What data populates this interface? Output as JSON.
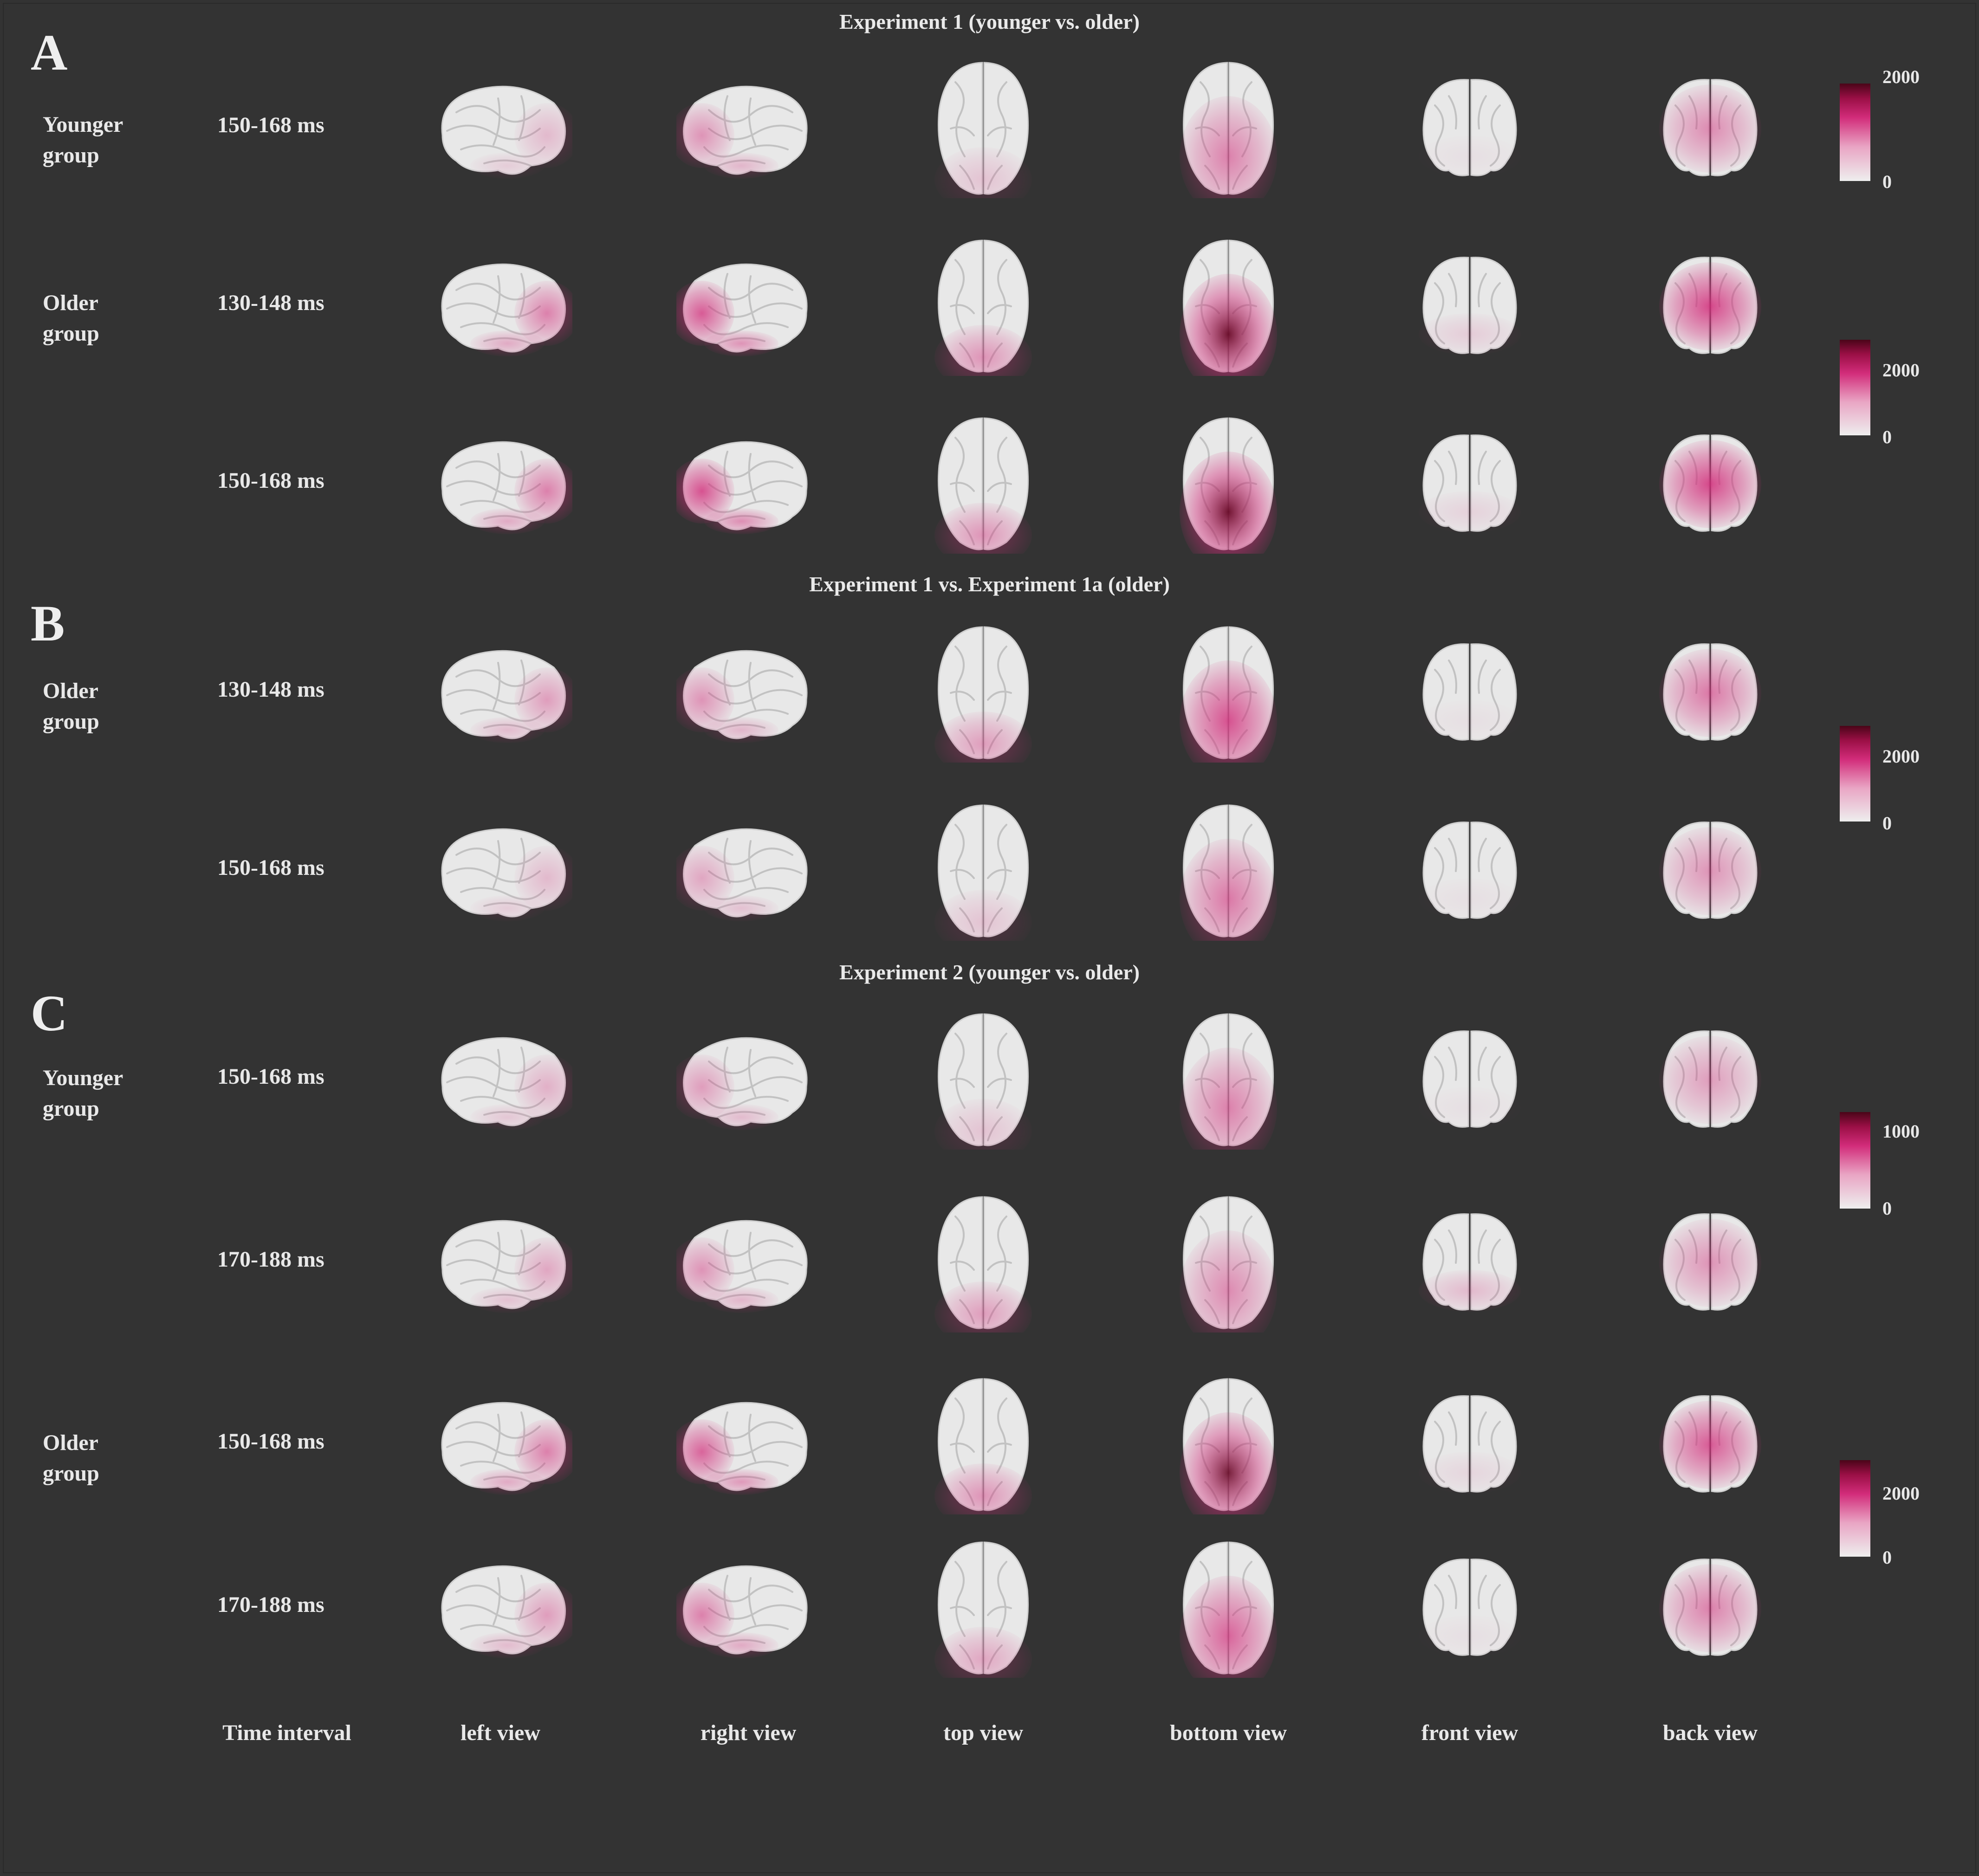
{
  "panels": [
    {
      "letter": "A",
      "title": "Experiment 1 (younger vs. older)"
    },
    {
      "letter": "B",
      "title": "Experiment 1 vs. Experiment 1a (older)"
    },
    {
      "letter": "C",
      "title": "Experiment 2 (younger vs. older)"
    }
  ],
  "groups": [
    {
      "line1": "Younger",
      "line2": "group"
    },
    {
      "line1": "Older",
      "line2": "group"
    },
    {
      "line1": "Older",
      "line2": "group"
    },
    {
      "line1": "Younger",
      "line2": "group"
    },
    {
      "line1": "Older",
      "line2": "group"
    }
  ],
  "rows": [
    {
      "panel": "A",
      "time": "150-168 ms",
      "intensity": [
        0.25,
        0.45,
        0.2,
        0.55,
        0.05,
        0.5
      ]
    },
    {
      "panel": "A",
      "time": "130-148 ms",
      "intensity": [
        0.55,
        0.75,
        0.45,
        0.95,
        0.15,
        0.85
      ]
    },
    {
      "panel": "A",
      "time": "150-168 ms",
      "intensity": [
        0.55,
        0.8,
        0.45,
        1.0,
        0.12,
        0.85
      ]
    },
    {
      "panel": "B",
      "time": "130-148 ms",
      "intensity": [
        0.4,
        0.45,
        0.4,
        0.8,
        0.05,
        0.6
      ]
    },
    {
      "panel": "B",
      "time": "150-168 ms",
      "intensity": [
        0.25,
        0.35,
        0.2,
        0.6,
        0.05,
        0.45
      ]
    },
    {
      "panel": "C",
      "time": "150-168 ms",
      "intensity": [
        0.3,
        0.4,
        0.2,
        0.55,
        0.05,
        0.4
      ]
    },
    {
      "panel": "C",
      "time": "170-188 ms",
      "intensity": [
        0.35,
        0.45,
        0.4,
        0.5,
        0.25,
        0.45
      ]
    },
    {
      "panel": "C",
      "time": "150-168 ms",
      "intensity": [
        0.55,
        0.7,
        0.45,
        0.9,
        0.1,
        0.75
      ]
    },
    {
      "panel": "C",
      "time": "170-188 ms",
      "intensity": [
        0.4,
        0.55,
        0.35,
        0.7,
        0.05,
        0.55
      ]
    }
  ],
  "views": [
    "left view",
    "right view",
    "top view",
    "bottom view",
    "front view",
    "back view"
  ],
  "time_header": "Time interval",
  "colorbars": [
    {
      "max": "2000",
      "min": "0"
    },
    {
      "max": "2000",
      "min": "0"
    },
    {
      "max": "2000",
      "min": "0"
    },
    {
      "max": "1000",
      "min": "0"
    },
    {
      "max": "2000",
      "min": "0"
    }
  ],
  "colors": {
    "background": "#333333",
    "brain": "#e8e8e8",
    "activation": "#d22c7a",
    "peak": "#6a0a28"
  }
}
